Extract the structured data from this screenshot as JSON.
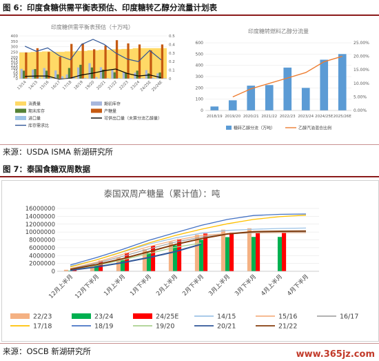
{
  "fig6": {
    "title": "图 6：印度食糖供需平衡表预估、印度糖转乙醇分流量计划表"
  },
  "fig7": {
    "title": "图 7：泰国食糖双周数据"
  },
  "source1": "来源：USDA ISMA 新湖研究所",
  "source2": "来源：OSCB 新湖研究所",
  "watermark": "www.365jz.com",
  "chart_data": [
    {
      "type": "bar",
      "title": "印度糖供需平衡表预估（十万吨）",
      "categories": [
        "13/14",
        "14/15",
        "15/16",
        "16/17",
        "17/18",
        "18/19",
        "19/20",
        "20/21",
        "21/22",
        "22/23",
        "23/24",
        "24/25E",
        "25/26E"
      ],
      "ylim": [
        0,
        400
      ],
      "y2lim": [
        0,
        0.5
      ],
      "yticks": [
        0,
        25,
        50,
        75,
        100,
        125,
        150,
        175,
        200,
        250,
        300,
        350,
        400
      ],
      "y2ticks": [
        0,
        0.1,
        0.2,
        0.3,
        0.4,
        0.5
      ],
      "series": [
        {
          "name": "消费量",
          "type": "area",
          "color": "#ffd966",
          "values": [
            245,
            250,
            255,
            250,
            255,
            260,
            265,
            270,
            275,
            278,
            285,
            285,
            285
          ]
        },
        {
          "name": "期初库存",
          "type": "bar",
          "color": "#a7b7dd",
          "values": [
            92,
            85,
            100,
            77,
            40,
            105,
            145,
            107,
            82,
            60,
            56,
            80,
            50
          ]
        },
        {
          "name": "期末库存",
          "type": "bar",
          "color": "#548235",
          "values": [
            75,
            90,
            75,
            40,
            100,
            130,
            105,
            85,
            60,
            56,
            75,
            50,
            58
          ]
        },
        {
          "name": "产糖量",
          "type": "bar",
          "color": "#c55a11",
          "values": [
            245,
            285,
            250,
            205,
            325,
            330,
            275,
            310,
            360,
            330,
            320,
            265,
            320
          ]
        },
        {
          "name": "进口量",
          "type": "bar",
          "color": "#9dc3e6",
          "values": [
            10,
            12,
            10,
            22,
            20,
            8,
            15,
            5,
            6,
            5,
            5,
            8,
            5
          ]
        },
        {
          "name": "可供出口量（未算分流乙醇量）",
          "type": "line",
          "color": "#000000",
          "values": [
            22,
            25,
            25,
            -5,
            5,
            35,
            52,
            75,
            90,
            50,
            25,
            35,
            10
          ]
        },
        {
          "name": "库存需求比",
          "type": "line",
          "axis": "right",
          "color": "#2f5597",
          "values": [
            0.38,
            0.32,
            0.36,
            0.27,
            0.22,
            0.4,
            0.46,
            0.4,
            0.3,
            0.23,
            0.2,
            0.33,
            0.22
          ]
        }
      ]
    },
    {
      "type": "bar",
      "title": "印度糖转燃料乙醇分流量",
      "categories": [
        "2018/19",
        "2019/20",
        "2020/21",
        "2021/22",
        "2022/23",
        "2023/24",
        "2024/25E",
        "2025/26E"
      ],
      "ylim": [
        0,
        600
      ],
      "y2lim": [
        0,
        0.25
      ],
      "yticks": [
        0,
        100,
        200,
        300,
        400,
        500,
        600
      ],
      "y2ticks": [
        "0.00%",
        "5.00%",
        "10.00%",
        "15.00%",
        "20.00%",
        "25.00%"
      ],
      "series": [
        {
          "name": "糖转乙醇分流（万吨）",
          "type": "bar",
          "color": "#5b9bd5",
          "values": [
            35,
            90,
            220,
            225,
            380,
            200,
            450,
            500
          ]
        },
        {
          "name": "乙醇汽油混合比例",
          "type": "line",
          "axis": "right",
          "color": "#ed7d31",
          "values": [
            null,
            0.05,
            0.08,
            0.1,
            0.12,
            0.14,
            0.18,
            0.2
          ]
        }
      ]
    },
    {
      "type": "bar",
      "title": "泰国双周产糖量（累计值）：吨",
      "categories": [
        "12月上半月",
        "12月下半月",
        "1月上半月",
        "1月下半月",
        "2月上半月",
        "2月下半月",
        "3月上半月",
        "3月下半月",
        "4月上半月",
        "4月下半月"
      ],
      "ylim": [
        0,
        16000000
      ],
      "yticks": [
        "0",
        "2000000",
        "4000000",
        "6000000",
        "8000000",
        "10000000",
        "12000000",
        "14000000",
        "16000000"
      ],
      "series": [
        {
          "name": "22/23",
          "type": "bar",
          "color": "#f4b183",
          "values": [
            380000,
            1900000,
            3500000,
            5600000,
            7500000,
            9300000,
            10600000,
            10950000,
            null,
            null
          ]
        },
        {
          "name": "23/24",
          "type": "bar",
          "color": "#00b050",
          "values": [
            150000,
            1500000,
            2800000,
            4700000,
            6600000,
            8000000,
            8700000,
            8750000,
            8750000,
            null
          ]
        },
        {
          "name": "24/25E",
          "type": "bar",
          "color": "#ff0000",
          "values": [
            600000,
            2700000,
            4700000,
            6500000,
            8200000,
            9600000,
            9800000,
            10000000,
            10050000,
            null
          ]
        },
        {
          "name": "14/15",
          "type": "line",
          "color": "#9dc3e6",
          "values": [
            1300000,
            2900000,
            4900000,
            6900000,
            8500000,
            9700000,
            10400000,
            10700000,
            10900000,
            11000000
          ]
        },
        {
          "name": "15/16",
          "type": "line",
          "color": "#f4b183",
          "values": [
            700000,
            2300000,
            4300000,
            6300000,
            7900000,
            9100000,
            9600000,
            9800000,
            9850000,
            9850000
          ]
        },
        {
          "name": "16/17",
          "type": "line",
          "color": "#a6a6a6",
          "values": [
            600000,
            2100000,
            3800000,
            5700000,
            7400000,
            8700000,
            9500000,
            9900000,
            10000000,
            10000000
          ]
        },
        {
          "name": "17/18",
          "type": "line",
          "color": "#ffc000",
          "values": [
            1100000,
            2900000,
            5000000,
            7200000,
            9100000,
            10700000,
            12100000,
            13200000,
            13900000,
            14300000
          ]
        },
        {
          "name": "18/19",
          "type": "line",
          "color": "#4472c4",
          "values": [
            1600000,
            3500000,
            5600000,
            7900000,
            9800000,
            11700000,
            13200000,
            14200000,
            14500000,
            14600000
          ]
        },
        {
          "name": "19/20",
          "type": "line",
          "color": "#a9d18e",
          "values": [
            400000,
            1500000,
            2900000,
            4500000,
            6100000,
            7200000,
            null,
            null,
            null,
            null
          ]
        },
        {
          "name": "20/21",
          "type": "line",
          "color": "#2f5597",
          "values": [
            250000,
            1100000,
            2200000,
            3500000,
            5000000,
            6900000,
            null,
            null,
            null,
            null
          ]
        },
        {
          "name": "21/22",
          "type": "line",
          "color": "#843c0c",
          "values": [
            500000,
            1700000,
            3200000,
            5000000,
            6800000,
            8300000,
            9500000,
            10100000,
            10200000,
            10250000
          ]
        }
      ]
    }
  ]
}
